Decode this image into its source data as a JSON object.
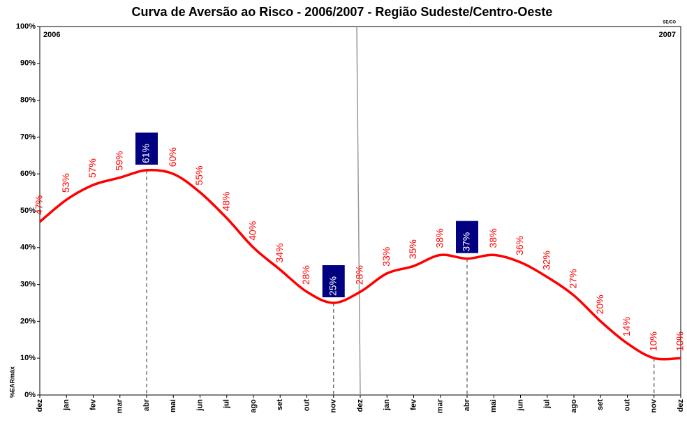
{
  "chart_data": {
    "type": "line",
    "title": "Curva de Aversão ao Risco - 2006/2007 - Região Sudeste/Centro-Oeste",
    "y_label": "%EARmáx",
    "annotations": [
      "2006",
      "2007",
      "SE/CO"
    ],
    "categories": [
      "dez",
      "jan",
      "fev",
      "mar",
      "abr",
      "mai",
      "jun",
      "jul",
      "ago",
      "set",
      "out",
      "nov",
      "dez",
      "jan",
      "fev",
      "mar",
      "abr",
      "mai",
      "jun",
      "jul",
      "ago",
      "set",
      "out",
      "nov",
      "dez"
    ],
    "series": [
      {
        "name": "Curva de Aversão ao Risco",
        "color": "#ff0000",
        "values": [
          47,
          53,
          57,
          59,
          61,
          60,
          55,
          48,
          40,
          34,
          28,
          25,
          28,
          33,
          35,
          38,
          37,
          38,
          36,
          32,
          27,
          20,
          14,
          10,
          10
        ],
        "value_labels": [
          "47%",
          "53%",
          "57%",
          "59%",
          "61%",
          "60%",
          "55%",
          "48%",
          "40%",
          "34%",
          "28%",
          "25%",
          "28%",
          "33%",
          "35%",
          "38%",
          "37%",
          "38%",
          "36%",
          "32%",
          "27%",
          "20%",
          "14%",
          "10%",
          "10%"
        ]
      }
    ],
    "highlight": [
      4,
      11,
      16
    ],
    "highlight_color": "#000080",
    "dashed_drop_lines": [
      4,
      11,
      16,
      23
    ],
    "year_separator": 12,
    "ylim": [
      0,
      100
    ],
    "yticks": [
      {
        "value": 0,
        "label": "0%"
      },
      {
        "value": 10,
        "label": "10%"
      },
      {
        "value": 20,
        "label": "20%"
      },
      {
        "value": 30,
        "label": "30%"
      },
      {
        "value": 40,
        "label": "40%"
      },
      {
        "value": 50,
        "label": "50%"
      },
      {
        "value": 60,
        "label": "60%"
      },
      {
        "value": 70,
        "label": "70%"
      },
      {
        "value": 80,
        "label": "80%"
      },
      {
        "value": 90,
        "label": "90%"
      },
      {
        "value": 100,
        "label": "100%"
      }
    ],
    "grid": false
  }
}
